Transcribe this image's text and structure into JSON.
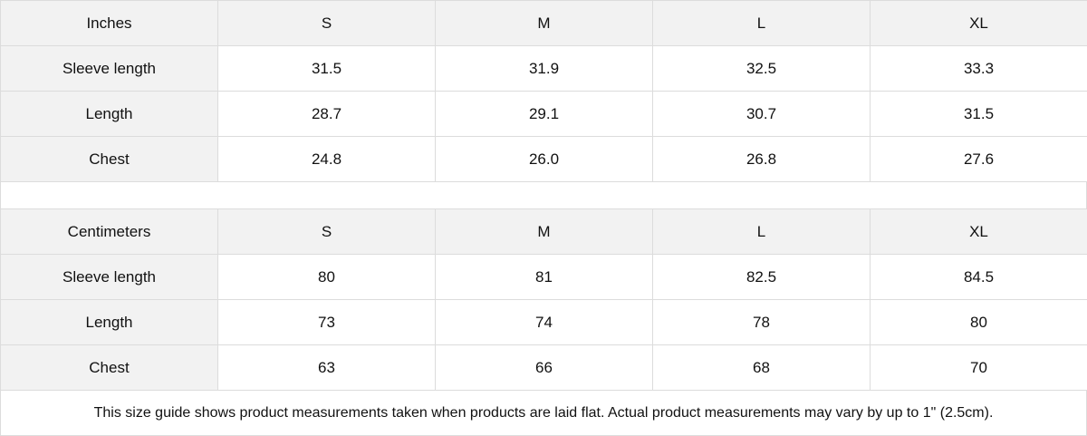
{
  "tables": [
    {
      "header": [
        "Inches",
        "S",
        "M",
        "L",
        "XL"
      ],
      "rows": [
        [
          "Sleeve length",
          "31.5",
          "31.9",
          "32.5",
          "33.3"
        ],
        [
          "Length",
          "28.7",
          "29.1",
          "30.7",
          "31.5"
        ],
        [
          "Chest",
          "24.8",
          "26.0",
          "26.8",
          "27.6"
        ]
      ]
    },
    {
      "header": [
        "Centimeters",
        "S",
        "M",
        "L",
        "XL"
      ],
      "rows": [
        [
          "Sleeve length",
          "80",
          "81",
          "82.5",
          "84.5"
        ],
        [
          "Length",
          "73",
          "74",
          "78",
          "80"
        ],
        [
          "Chest",
          "63",
          "66",
          "68",
          "70"
        ]
      ]
    }
  ],
  "note": "This size guide shows product measurements taken when products are laid flat.  Actual product measurements may vary by up to 1\" (2.5cm)."
}
